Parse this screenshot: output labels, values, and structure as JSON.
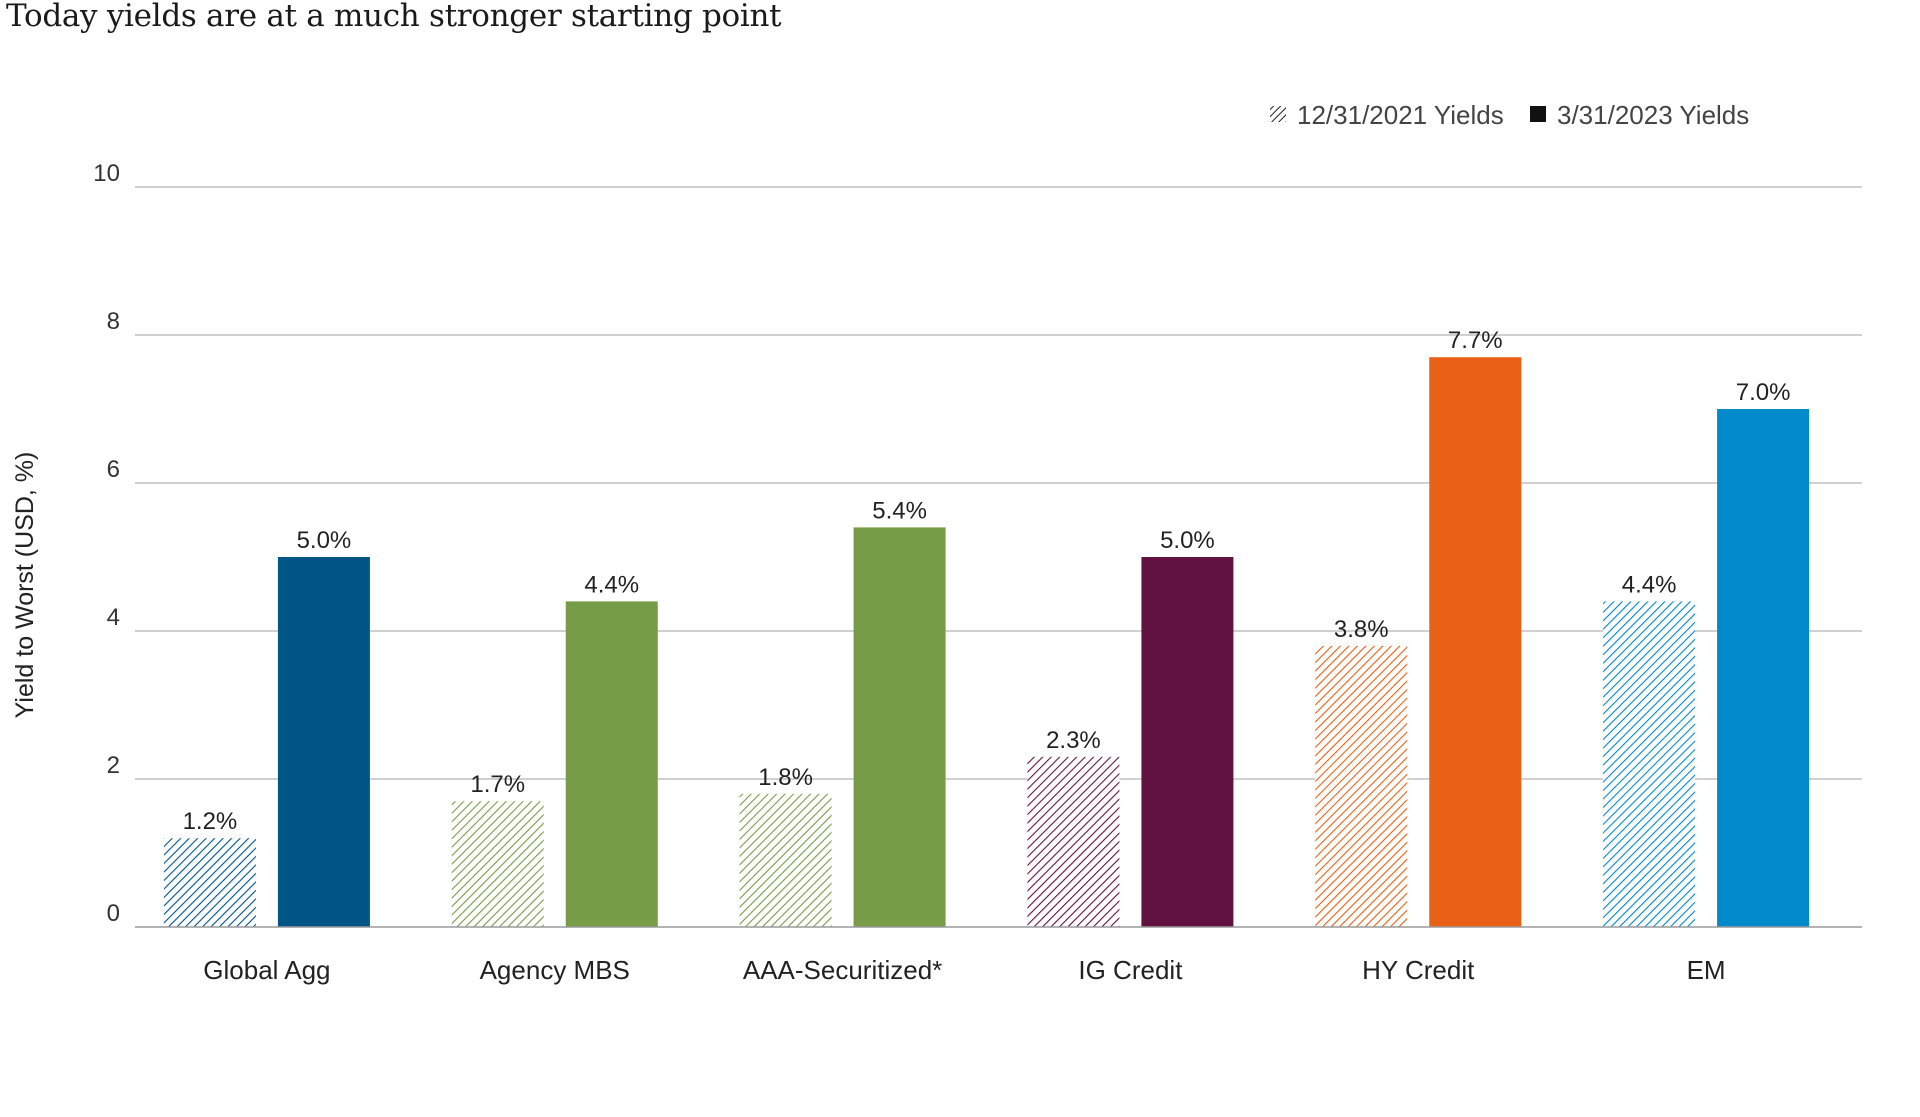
{
  "chart_data": {
    "type": "bar",
    "title": "Today yields are at a much stronger starting point",
    "xlabel": "",
    "ylabel": "Yield to Worst (USD, %)",
    "ylim": [
      0,
      10
    ],
    "yticks": [
      "0",
      "2",
      "4",
      "6",
      "8",
      "10"
    ],
    "grid": true,
    "legend_position": "top-right",
    "categories": [
      "Global Agg",
      "Agency MBS",
      "AAA-Securitized*",
      "IG Credit",
      "HY Credit",
      "EM"
    ],
    "category_colors": [
      "#005587",
      "#779C48",
      "#779C48",
      "#621241",
      "#EB6017",
      "#0089CB"
    ],
    "series": [
      {
        "name": "12/31/2021 Yields",
        "pattern": "hatched",
        "values": [
          1.2,
          1.7,
          1.8,
          2.3,
          3.8,
          4.4
        ],
        "labels": [
          "1.2%",
          "1.7%",
          "1.8%",
          "2.3%",
          "3.8%",
          "4.4%"
        ]
      },
      {
        "name": "3/31/2023 Yields",
        "pattern": "solid",
        "values": [
          5.0,
          4.4,
          5.4,
          5.0,
          7.7,
          7.0
        ],
        "labels": [
          "5.0%",
          "4.4%",
          "5.4%",
          "5.0%",
          "7.7%",
          "7.0%"
        ]
      }
    ]
  }
}
